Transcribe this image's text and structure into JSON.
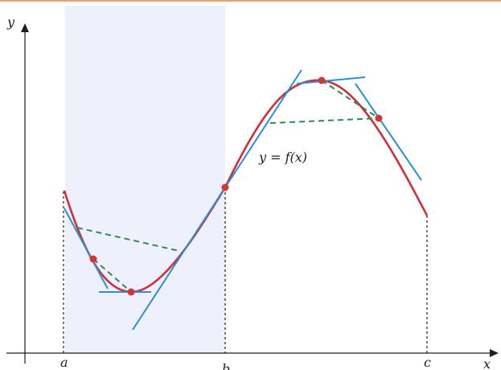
{
  "labels": {
    "y_axis": "y",
    "x_axis": "x",
    "function": "y = f(x)",
    "point_a": "a",
    "point_b": "b",
    "point_c": "c"
  },
  "colors": {
    "top_rule": "#E8A070",
    "shade": "#EEF0FB",
    "curve": "#D12E3A",
    "tangent": "#2B8FD6",
    "secant": "#2E8B57",
    "point": "#D03838",
    "axis": "#1E1E1E"
  }
}
